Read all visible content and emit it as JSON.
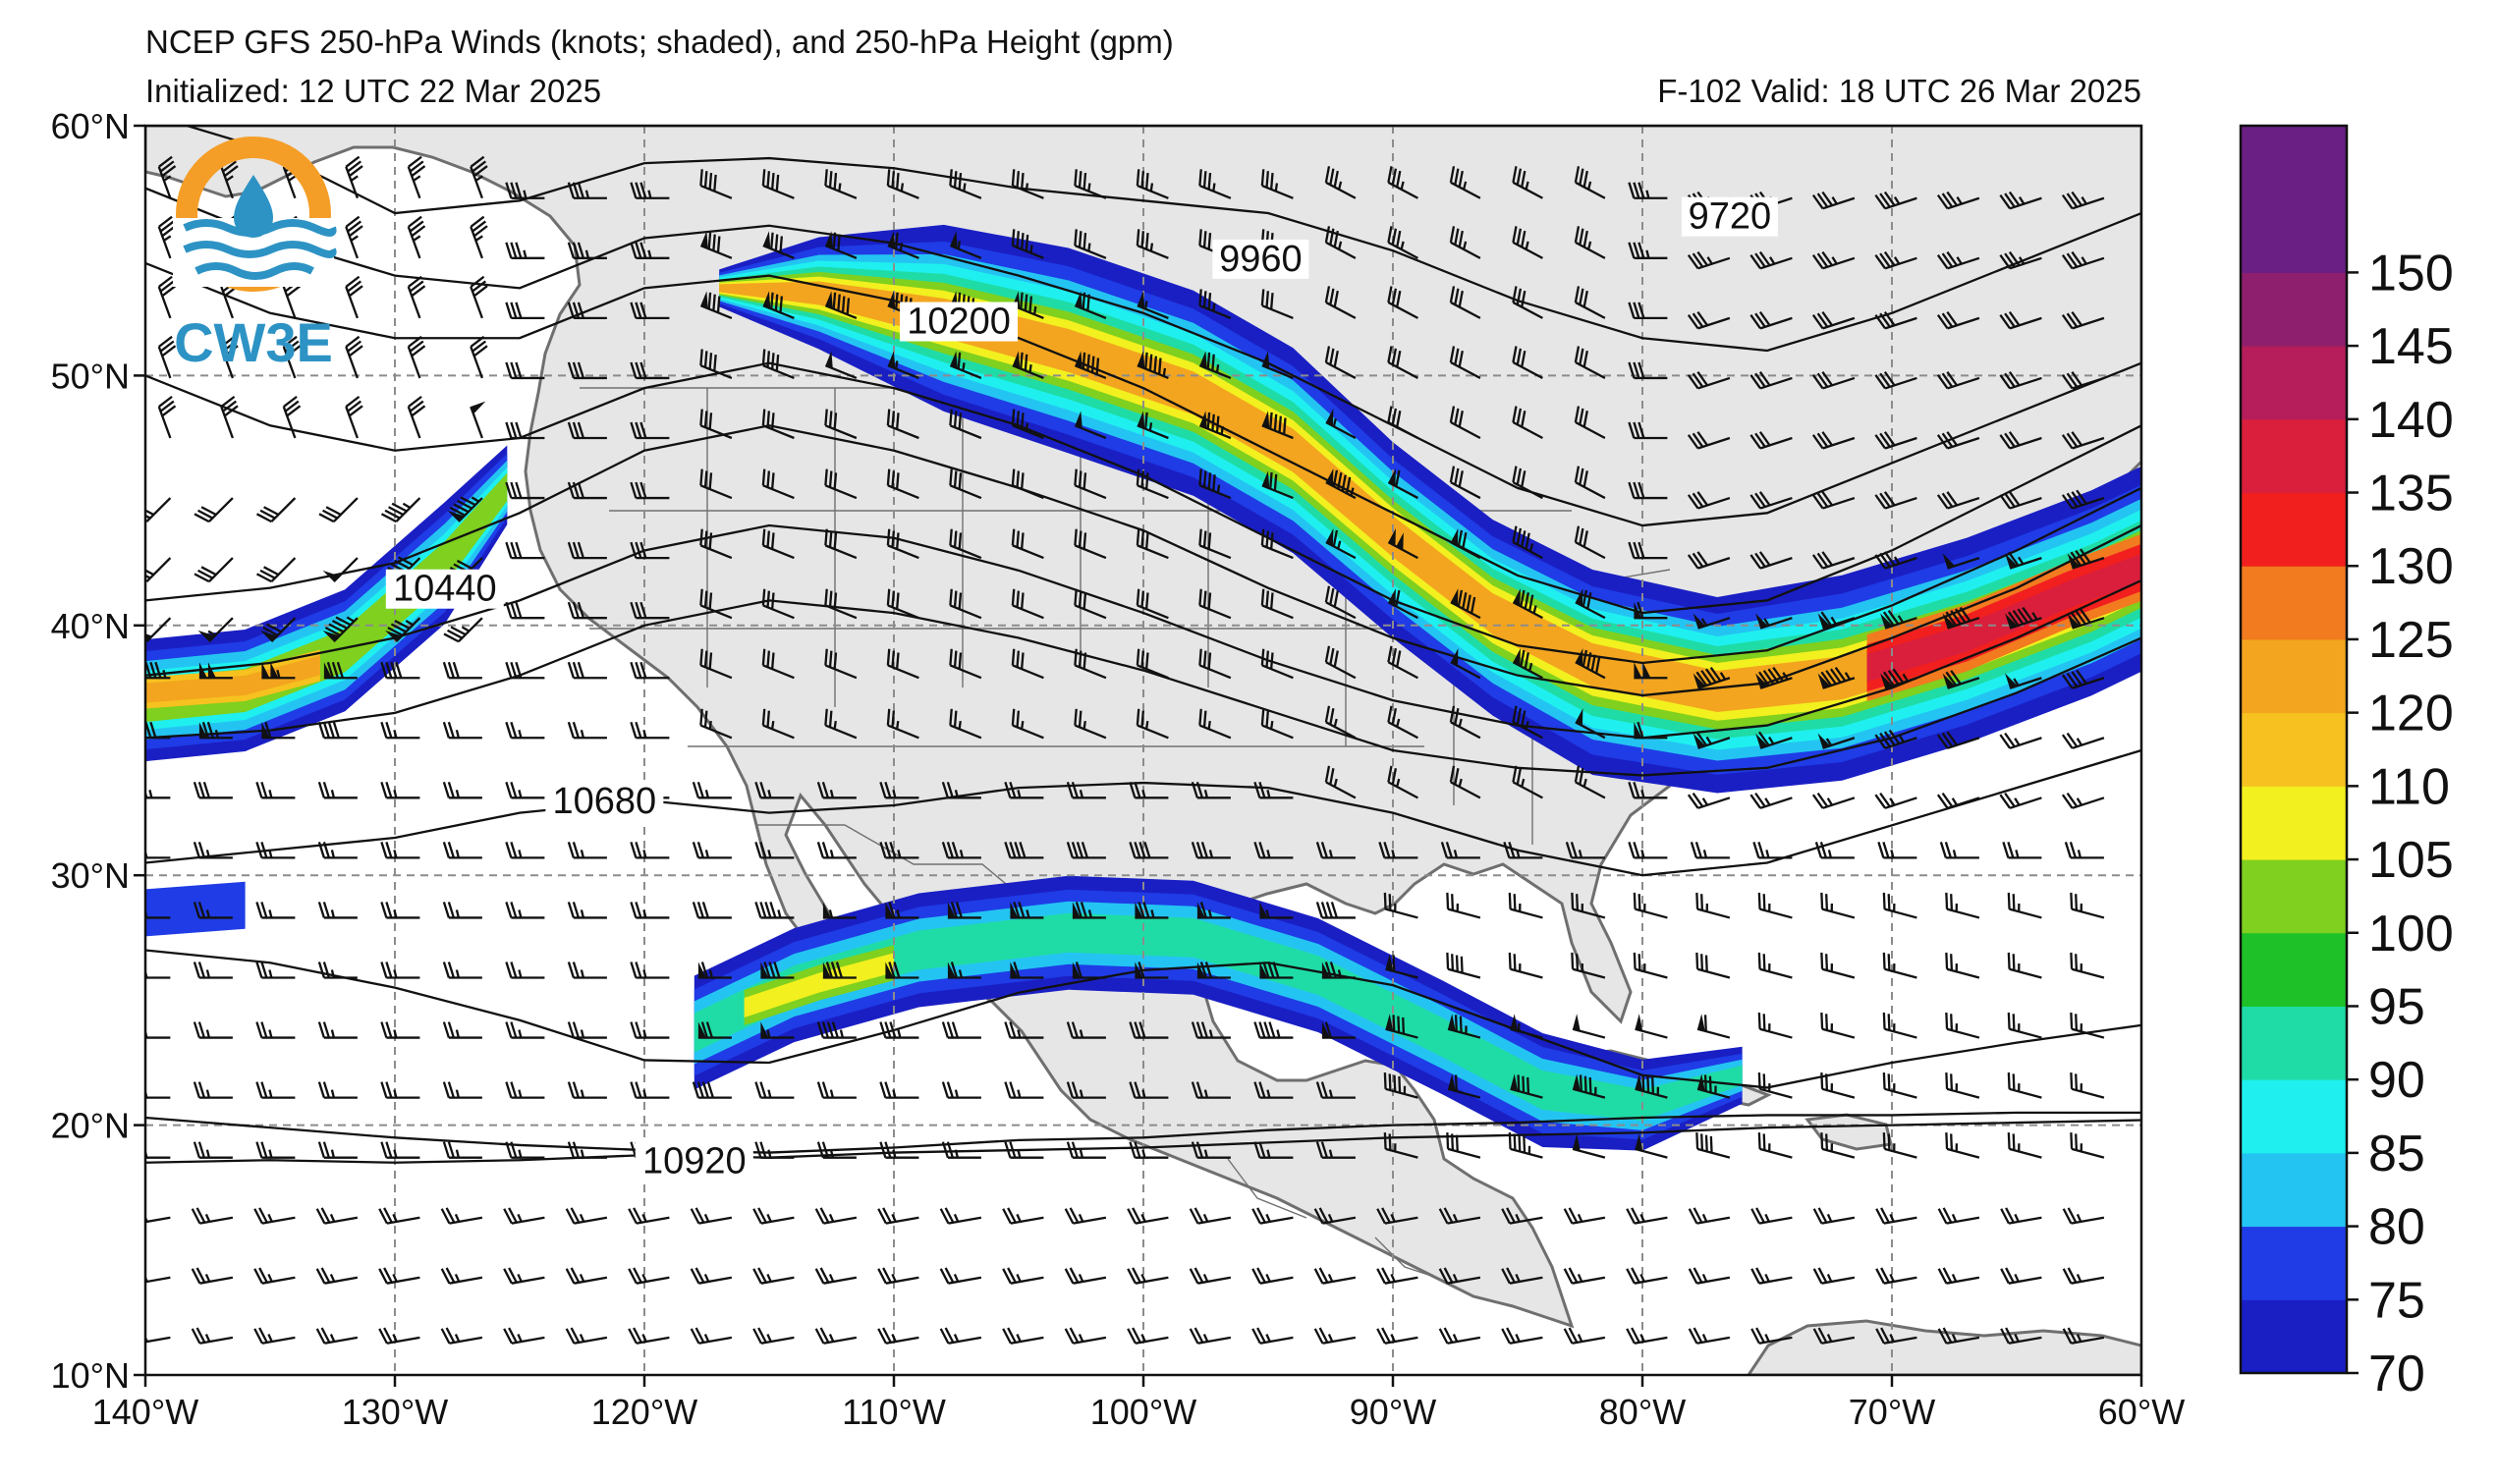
{
  "header": {
    "title": "NCEP GFS 250-hPa Winds (knots; shaded), and 250-hPa Height (gpm)",
    "initialized": "Initialized: 12 UTC 22 Mar 2025",
    "valid": "F-102  Valid: 18 UTC 26 Mar 2025"
  },
  "logo": {
    "text": "CW3E"
  },
  "map": {
    "lon_range": [
      -140,
      -60
    ],
    "lat_range": [
      10,
      60
    ],
    "lon_ticks": [
      {
        "value": -140,
        "label": "140°W"
      },
      {
        "value": -130,
        "label": "130°W"
      },
      {
        "value": -120,
        "label": "120°W"
      },
      {
        "value": -110,
        "label": "110°W"
      },
      {
        "value": -100,
        "label": "100°W"
      },
      {
        "value": -90,
        "label": "90°W"
      },
      {
        "value": -80,
        "label": "80°W"
      },
      {
        "value": -70,
        "label": "70°W"
      },
      {
        "value": -60,
        "label": "60°W"
      }
    ],
    "lat_ticks": [
      {
        "value": 60,
        "label": "60°N"
      },
      {
        "value": 50,
        "label": "50°N"
      },
      {
        "value": 40,
        "label": "40°N"
      },
      {
        "value": 30,
        "label": "30°N"
      },
      {
        "value": 20,
        "label": "20°N"
      },
      {
        "value": 10,
        "label": "10°N"
      }
    ],
    "gridlines": true,
    "land_color": "#e6e6e6",
    "ocean_color": "#ffffff",
    "coast_color": "#6f6f6f",
    "contour_labels": [
      {
        "value": "9720",
        "lon": -76.5,
        "lat": 56.2
      },
      {
        "value": "9960",
        "lon": -95.3,
        "lat": 54.5
      },
      {
        "value": "10200",
        "lon": -107.4,
        "lat": 52.0
      },
      {
        "value": "10440",
        "lon": -128.0,
        "lat": 41.3
      },
      {
        "value": "10680",
        "lon": -121.6,
        "lat": 32.8
      },
      {
        "value": "10920",
        "lon": -118.0,
        "lat": 18.4
      }
    ]
  },
  "colorbar": {
    "ticks": [
      70,
      75,
      80,
      85,
      90,
      95,
      100,
      105,
      110,
      120,
      125,
      130,
      135,
      140,
      145,
      150
    ],
    "tick_labels": [
      "70",
      "75",
      "80",
      "85",
      "90",
      "95",
      "100",
      "105",
      "110",
      "120",
      "125",
      "130",
      "135",
      "140",
      "145",
      "150"
    ],
    "colors": [
      "#1a1fc4",
      "#1f3ce6",
      "#24c4f2",
      "#1ff0ef",
      "#1fdca6",
      "#1ec228",
      "#7fd01f",
      "#f2f01f",
      "#f7c21f",
      "#f3a51f",
      "#f27a1f",
      "#f21f1f",
      "#d91f3c",
      "#b51e5a",
      "#8e1f6e",
      "#6a1f85"
    ],
    "extra_segment_color": "#6a1f85"
  }
}
